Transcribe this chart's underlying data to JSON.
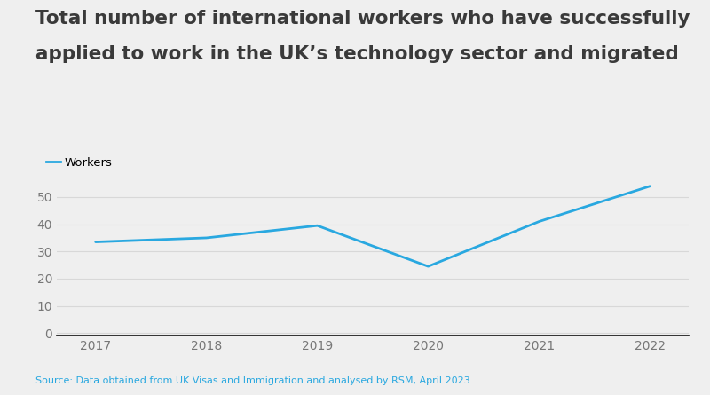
{
  "title_line1": "Total number of international workers who have successfully",
  "title_line2": "applied to work in the UK’s technology sector and migrated",
  "years": [
    2017,
    2018,
    2019,
    2020,
    2021,
    2022
  ],
  "values": [
    33.5,
    35,
    39.5,
    24.5,
    41,
    54
  ],
  "line_color": "#29a8e0",
  "line_width": 2.0,
  "legend_label": "Workers",
  "ylabel_ticks": [
    0,
    10,
    20,
    30,
    40,
    50
  ],
  "ylim": [
    -1,
    60
  ],
  "xlim": [
    2016.65,
    2022.35
  ],
  "background_color": "#efefef",
  "title_color": "#3a3a3a",
  "title_fontsize": 15.5,
  "source_text": "Source: Data obtained from UK Visas and Immigration and analysed by RSM, April 2023",
  "source_color": "#29a8e0",
  "source_fontsize": 8,
  "grid_color": "#d8d8d8",
  "tick_color": "#777777",
  "tick_fontsize": 10,
  "legend_fontsize": 9.5,
  "axis_bottom_color": "#111111",
  "axis_bottom_linewidth": 1.2
}
